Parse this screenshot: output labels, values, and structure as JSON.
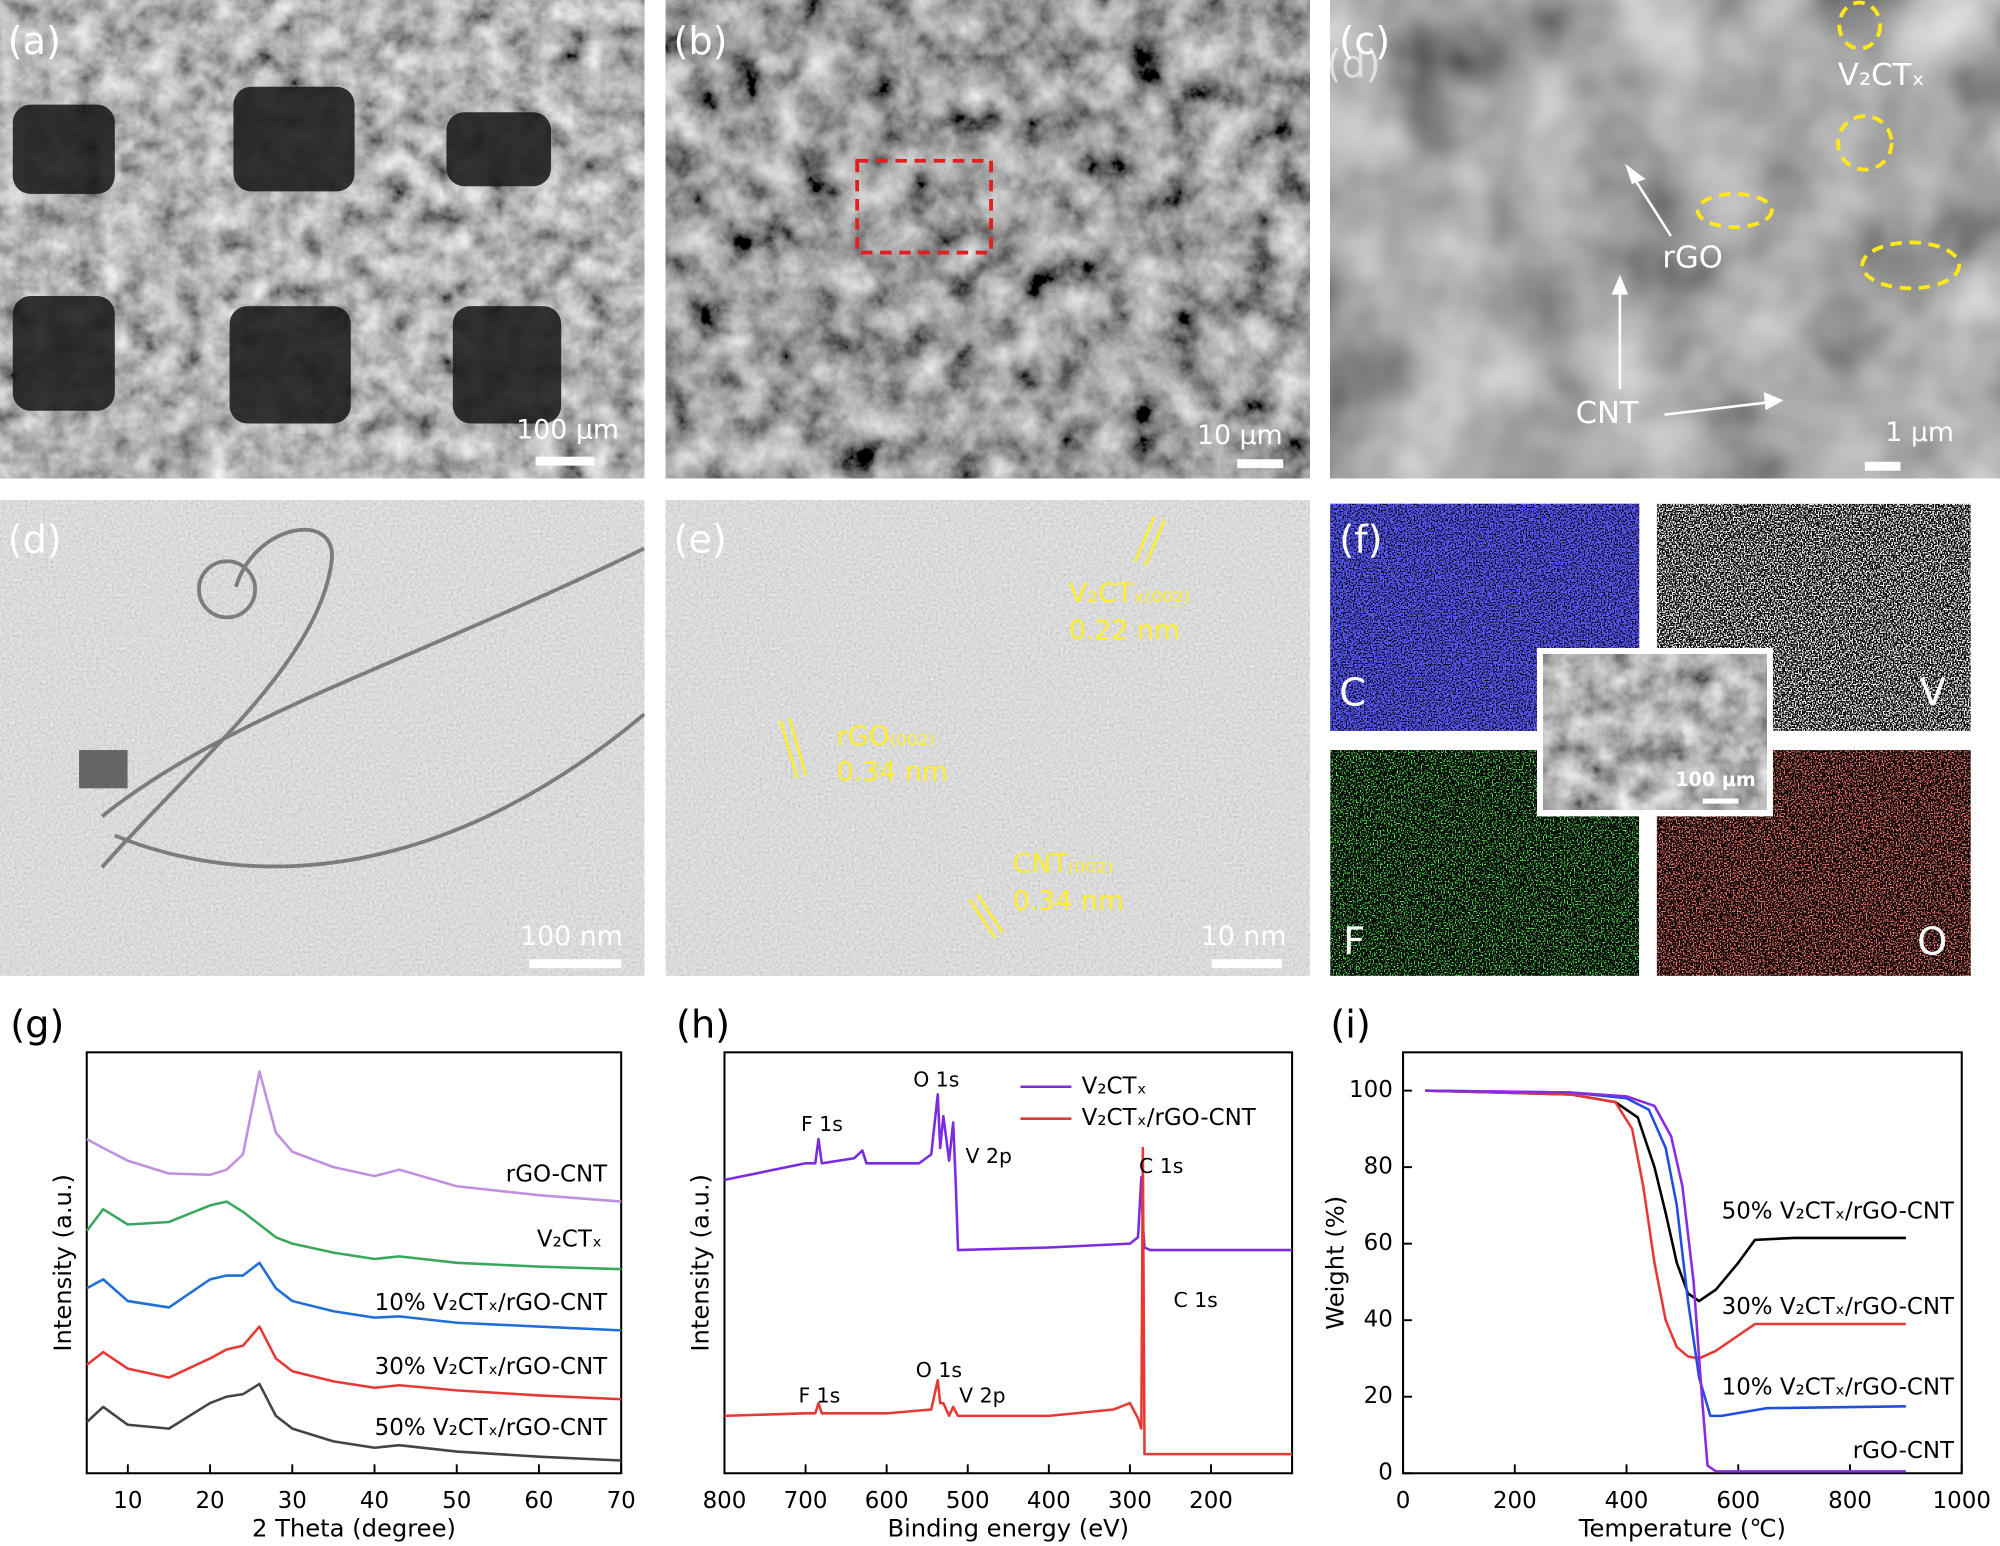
{
  "panels": {
    "a": {
      "label": "(a)",
      "scale_bar": "100 µm"
    },
    "b": {
      "label": "(b)",
      "scale_bar": "10 µm"
    },
    "c": {
      "label": "(c)",
      "overlap_label": "(d)",
      "v2ctx": "V₂CTₓ",
      "rgo": "rGO",
      "cnt": "CNT",
      "scale_bar": "1 µm"
    },
    "d": {
      "label": "(d)",
      "scale_bar": "100 nm"
    },
    "e": {
      "label": "(e)",
      "v2ctx_plane": "V₂CTₓ₍₀₀₂₎",
      "v2ctx_spacing": "0.22 nm",
      "rgo_plane": "rGO₍₀₀₂₎",
      "rgo_spacing": "0.34 nm",
      "cnt_plane": "CNT₍₀₀₂₎",
      "cnt_spacing": "0.34 nm",
      "scale_bar": "10 nm"
    },
    "f": {
      "label": "(f)",
      "maps": [
        "C",
        "V",
        "F",
        "O"
      ],
      "inset_scale_bar": "100 µm"
    }
  },
  "chart_data": [
    {
      "type": "line",
      "panel_label": "(g)",
      "x_label": "2 Theta (degree)",
      "y_label": "Intensity (a.u.)",
      "legend": "inline",
      "xlim": [
        5,
        70
      ],
      "ylim": [
        0,
        330
      ],
      "xticks": [
        10,
        20,
        30,
        40,
        50,
        60,
        70
      ],
      "yticks": [],
      "x": [
        5,
        7,
        10,
        15,
        20,
        22,
        24,
        26,
        28,
        30,
        35,
        40,
        43,
        50,
        60,
        70
      ],
      "series": [
        {
          "name": "rGO-CNT",
          "color": "#c08fe0",
          "values": [
            262,
            255,
            245,
            235,
            234,
            238,
            250,
            315,
            267,
            252,
            240,
            233,
            238,
            225,
            218,
            213
          ]
        },
        {
          "name": "V₂CTₓ",
          "color": "#3aa85c",
          "values": [
            190,
            207,
            195,
            197,
            210,
            213,
            205,
            195,
            185,
            180,
            173,
            168,
            170,
            165,
            162,
            160
          ]
        },
        {
          "name": "10% V₂CTₓ/rGO-CNT",
          "color": "#1f6fd6",
          "values": [
            145,
            152,
            135,
            130,
            152,
            155,
            155,
            165,
            145,
            135,
            127,
            122,
            123,
            118,
            115,
            112
          ]
        },
        {
          "name": "30% V₂CTₓ/rGO-CNT",
          "color": "#e53935",
          "values": [
            85,
            95,
            82,
            75,
            90,
            97,
            100,
            115,
            90,
            80,
            72,
            67,
            69,
            65,
            61,
            58
          ]
        },
        {
          "name": "50% V₂CTₓ/rGO-CNT",
          "color": "#444444",
          "values": [
            40,
            52,
            38,
            35,
            55,
            60,
            62,
            70,
            45,
            35,
            25,
            20,
            22,
            17,
            13,
            10
          ]
        }
      ]
    },
    {
      "type": "line",
      "panel_label": "(h)",
      "x_label": "Binding energy (eV)",
      "y_label": "Intensity (a.u.)",
      "legend": "upper right",
      "xlim": [
        800,
        100
      ],
      "ylim": [
        0,
        330
      ],
      "xticks": [
        800,
        700,
        600,
        500,
        400,
        300,
        200
      ],
      "yticks": [],
      "series": [
        {
          "name": "V₂CTₓ",
          "color": "#7b2be2",
          "x": [
            800,
            700,
            688,
            684,
            680,
            640,
            630,
            625,
            560,
            545,
            537,
            534,
            530,
            523,
            518,
            515,
            512,
            400,
            300,
            290,
            286,
            284,
            282,
            275,
            200,
            100
          ],
          "values": [
            230,
            243,
            243,
            262,
            243,
            247,
            253,
            243,
            243,
            250,
            297,
            255,
            280,
            245,
            275,
            230,
            175,
            177,
            180,
            185,
            232,
            195,
            177,
            175,
            175,
            175
          ]
        },
        {
          "name": "V₂CTₓ/rGO-CNT",
          "color": "#e53935",
          "x": [
            800,
            700,
            688,
            684,
            680,
            600,
            545,
            537,
            534,
            530,
            523,
            518,
            512,
            400,
            320,
            300,
            290,
            286,
            284,
            282,
            280,
            200,
            100
          ],
          "values": [
            45,
            47,
            47,
            55,
            47,
            47,
            50,
            73,
            55,
            55,
            45,
            52,
            45,
            45,
            50,
            55,
            43,
            35,
            255,
            15,
            15,
            15,
            15
          ]
        }
      ],
      "annotations": [
        "O 1s",
        "F 1s",
        "V 2p",
        "C 1s",
        "C 1s",
        "F 1s",
        "O 1s",
        "V 2p"
      ]
    },
    {
      "type": "line",
      "panel_label": "(i)",
      "x_label": "Temperature (℃)",
      "y_label": "Weight (%)",
      "legend": "inline",
      "xlim": [
        0,
        1000
      ],
      "ylim": [
        0,
        110
      ],
      "xticks": [
        0,
        200,
        400,
        600,
        800,
        1000
      ],
      "yticks": [
        0,
        20,
        40,
        60,
        80,
        100
      ],
      "series": [
        {
          "name": "50% V₂CTₓ/rGO-CNT",
          "color": "#000000",
          "x": [
            40,
            300,
            380,
            420,
            450,
            470,
            490,
            510,
            530,
            560,
            600,
            630,
            700,
            900
          ],
          "values": [
            100,
            99,
            97,
            93,
            80,
            68,
            55,
            47,
            45,
            48,
            55,
            61,
            61.5,
            61.5
          ]
        },
        {
          "name": "30% V₂CTₓ/rGO-CNT",
          "color": "#e53935",
          "x": [
            40,
            300,
            380,
            410,
            430,
            450,
            470,
            490,
            510,
            530,
            560,
            600,
            630,
            900
          ],
          "values": [
            100,
            99,
            97,
            90,
            75,
            55,
            40,
            33,
            30.5,
            30,
            32,
            36,
            39,
            39
          ]
        },
        {
          "name": "10% V₂CTₓ/rGO-CNT",
          "color": "#1f4fe0",
          "x": [
            40,
            300,
            400,
            440,
            470,
            490,
            510,
            530,
            550,
            570,
            650,
            900
          ],
          "values": [
            100,
            99.5,
            98,
            95,
            85,
            70,
            45,
            25,
            15,
            15,
            17,
            17.5
          ]
        },
        {
          "name": "rGO-CNT",
          "color": "#8a2be2",
          "x": [
            40,
            300,
            400,
            450,
            480,
            500,
            520,
            535,
            545,
            560,
            900
          ],
          "values": [
            100,
            99.5,
            98.5,
            96,
            88,
            75,
            50,
            20,
            2,
            0.5,
            0.5
          ]
        }
      ]
    }
  ]
}
